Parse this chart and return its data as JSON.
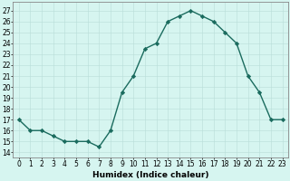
{
  "x": [
    0,
    1,
    2,
    3,
    4,
    5,
    6,
    7,
    8,
    9,
    10,
    11,
    12,
    13,
    14,
    15,
    16,
    17,
    18,
    19,
    20,
    21,
    22,
    23
  ],
  "y": [
    17,
    16,
    16,
    15.5,
    15,
    15,
    15,
    14.5,
    16,
    19.5,
    21,
    23.5,
    24,
    26,
    26.5,
    27,
    26.5,
    26,
    25,
    24,
    21,
    19.5,
    17,
    17
  ],
  "line_color": "#1a6b5e",
  "marker": "D",
  "markersize": 2.2,
  "linewidth": 1.0,
  "bg_color": "#d6f5f0",
  "grid_color": "#b8ddd8",
  "xlabel": "Humidex (Indice chaleur)",
  "xlabel_fontsize": 6.5,
  "ylabel_ticks": [
    14,
    15,
    16,
    17,
    18,
    19,
    20,
    21,
    22,
    23,
    24,
    25,
    26,
    27
  ],
  "xlim": [
    -0.5,
    23.5
  ],
  "ylim": [
    13.5,
    27.8
  ],
  "tick_fontsize": 5.5
}
